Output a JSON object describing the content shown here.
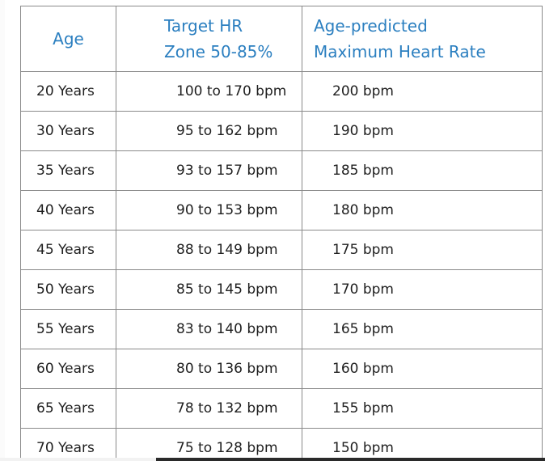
{
  "table": {
    "headers": {
      "age": "Age",
      "zone_line1": "Target HR",
      "zone_line2": "Zone 50-85%",
      "max_line1": "Age-predicted",
      "max_line2": "Maximum Heart Rate"
    },
    "rows": [
      {
        "age": "20 Years",
        "zone": "100 to 170 bpm",
        "max": "200 bpm"
      },
      {
        "age": "30 Years",
        "zone": "95 to 162 bpm",
        "max": "190 bpm"
      },
      {
        "age": "35 Years",
        "zone": "93 to 157 bpm",
        "max": "185 bpm"
      },
      {
        "age": "40 Years",
        "zone": "90 to 153 bpm",
        "max": "180 bpm"
      },
      {
        "age": "45 Years",
        "zone": "88 to 149 bpm",
        "max": "175 bpm"
      },
      {
        "age": "50 Years",
        "zone": "85 to 145 bpm",
        "max": "170 bpm"
      },
      {
        "age": "55 Years",
        "zone": "83 to 140 bpm",
        "max": "165 bpm"
      },
      {
        "age": "60 Years",
        "zone": "80 to 136 bpm",
        "max": "160 bpm"
      },
      {
        "age": "65 Years",
        "zone": "78 to 132 bpm",
        "max": "155 bpm"
      },
      {
        "age": "70 Years",
        "zone": "75 to 128 bpm",
        "max": "150 bpm"
      }
    ]
  },
  "colors": {
    "header_text": "#2b7fc0",
    "border": "#8a8a8a",
    "body_text": "#1f1f1f"
  }
}
